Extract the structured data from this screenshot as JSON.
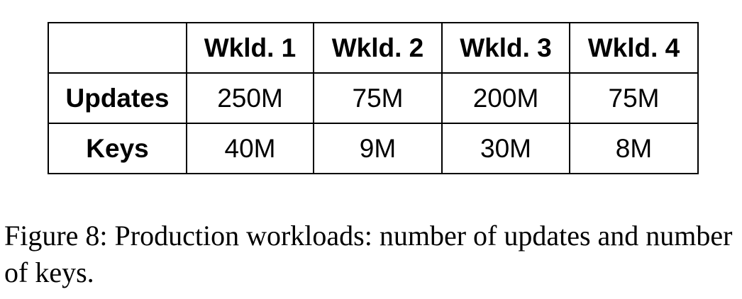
{
  "table": {
    "headers": [
      "",
      "Wkld. 1",
      "Wkld. 2",
      "Wkld. 3",
      "Wkld. 4"
    ],
    "rows": [
      {
        "label": "Updates",
        "values": [
          "250M",
          "75M",
          "200M",
          "75M"
        ]
      },
      {
        "label": "Keys",
        "values": [
          "40M",
          "9M",
          "30M",
          "8M"
        ]
      }
    ]
  },
  "caption": "Figure 8: Production workloads: number of updates and number of keys."
}
